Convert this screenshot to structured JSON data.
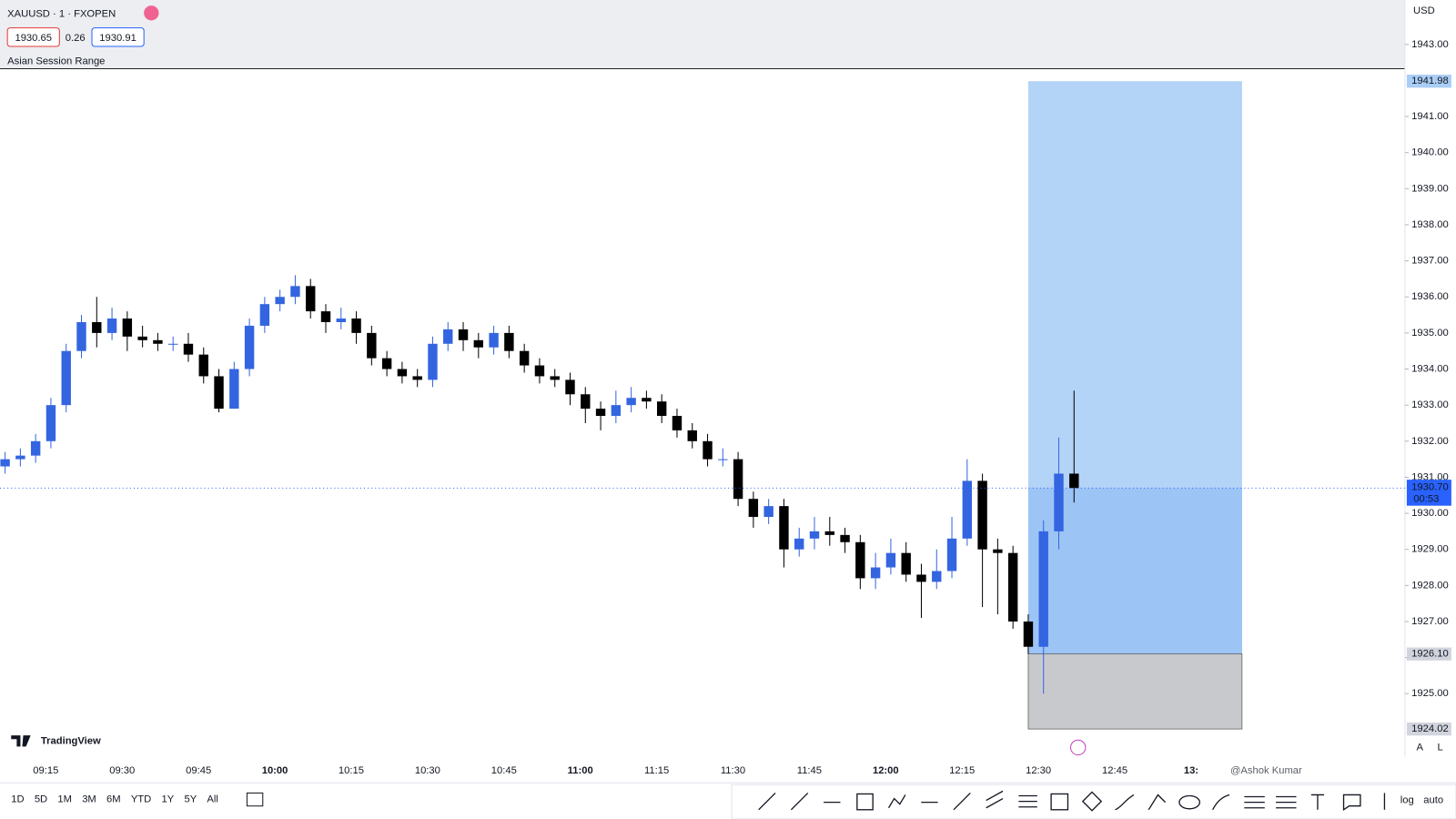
{
  "header": {
    "symbol": "XAUUSD · 1 · FXOPEN",
    "bid": "1930.65",
    "spread": "0.26",
    "ask": "1930.91",
    "indicator": "Asian Session Range"
  },
  "currency": "USD",
  "chart_data": {
    "type": "candlestick",
    "x": [
      "09:07",
      "09:10",
      "09:13",
      "09:16",
      "09:19",
      "09:22",
      "09:25",
      "09:28",
      "09:31",
      "09:34",
      "09:37",
      "09:40",
      "09:43",
      "09:46",
      "09:49",
      "09:52",
      "09:55",
      "09:58",
      "10:01",
      "10:04",
      "10:07",
      "10:10",
      "10:13",
      "10:16",
      "10:19",
      "10:22",
      "10:25",
      "10:28",
      "10:31",
      "10:34",
      "10:37",
      "10:40",
      "10:43",
      "10:46",
      "10:49",
      "10:52",
      "10:55",
      "10:58",
      "11:01",
      "11:04",
      "11:07",
      "11:10",
      "11:13",
      "11:16",
      "11:19",
      "11:22",
      "11:25",
      "11:28",
      "11:31",
      "11:34",
      "11:37",
      "11:40",
      "11:43",
      "11:46",
      "11:49",
      "11:52",
      "11:55",
      "11:58",
      "12:01",
      "12:04",
      "12:07",
      "12:10",
      "12:13",
      "12:16",
      "12:19",
      "12:22",
      "12:25",
      "12:28",
      "12:31",
      "12:34",
      "12:37"
    ],
    "open": [
      1931.3,
      1931.5,
      1931.6,
      1932.0,
      1933.0,
      1934.5,
      1935.3,
      1935.0,
      1935.4,
      1934.9,
      1934.8,
      1934.7,
      1934.7,
      1934.4,
      1933.8,
      1932.9,
      1934.0,
      1935.2,
      1935.8,
      1936.0,
      1936.3,
      1935.6,
      1935.3,
      1935.4,
      1935.0,
      1934.3,
      1934.0,
      1933.8,
      1933.7,
      1934.7,
      1935.1,
      1934.8,
      1934.6,
      1935.0,
      1934.5,
      1934.1,
      1933.8,
      1933.7,
      1933.3,
      1932.9,
      1932.7,
      1933.0,
      1933.2,
      1933.1,
      1932.7,
      1932.3,
      1932.0,
      1931.5,
      1931.5,
      1930.4,
      1929.9,
      1930.2,
      1929.0,
      1929.3,
      1929.5,
      1929.4,
      1929.2,
      1928.2,
      1928.5,
      1928.9,
      1928.3,
      1928.1,
      1928.4,
      1929.3,
      1930.9,
      1929.0,
      1928.9,
      1927.0,
      1926.3,
      1929.5,
      1931.1
    ],
    "high": [
      1931.7,
      1931.8,
      1932.2,
      1933.2,
      1934.7,
      1935.5,
      1936.0,
      1935.7,
      1935.6,
      1935.2,
      1935.0,
      1934.9,
      1935.0,
      1934.6,
      1934.0,
      1934.2,
      1935.4,
      1936.0,
      1936.2,
      1936.6,
      1936.5,
      1935.8,
      1935.7,
      1935.6,
      1935.2,
      1934.5,
      1934.2,
      1934.0,
      1934.9,
      1935.3,
      1935.3,
      1935.0,
      1935.2,
      1935.2,
      1934.7,
      1934.3,
      1934.0,
      1933.9,
      1933.5,
      1933.1,
      1933.4,
      1933.5,
      1933.4,
      1933.3,
      1932.9,
      1932.5,
      1932.2,
      1931.8,
      1931.7,
      1930.6,
      1930.4,
      1930.4,
      1929.6,
      1929.9,
      1929.9,
      1929.6,
      1929.4,
      1928.9,
      1929.3,
      1929.2,
      1928.6,
      1929.0,
      1929.9,
      1931.5,
      1931.1,
      1929.3,
      1929.1,
      1927.2,
      1929.8,
      1932.1,
      1933.4
    ],
    "low": [
      1931.1,
      1931.3,
      1931.4,
      1931.8,
      1932.8,
      1934.3,
      1934.6,
      1934.8,
      1934.5,
      1934.6,
      1934.5,
      1934.5,
      1934.2,
      1933.6,
      1932.8,
      1932.9,
      1933.8,
      1935.0,
      1935.6,
      1935.8,
      1935.4,
      1935.0,
      1935.1,
      1934.7,
      1934.1,
      1933.8,
      1933.6,
      1933.5,
      1933.5,
      1934.5,
      1934.5,
      1934.3,
      1934.4,
      1934.3,
      1933.9,
      1933.6,
      1933.5,
      1933.0,
      1932.5,
      1932.3,
      1932.5,
      1932.8,
      1932.9,
      1932.5,
      1932.1,
      1931.8,
      1931.3,
      1931.3,
      1930.2,
      1929.6,
      1929.7,
      1928.5,
      1928.8,
      1929.0,
      1929.1,
      1928.9,
      1927.9,
      1927.9,
      1928.3,
      1928.1,
      1927.1,
      1927.9,
      1928.2,
      1929.1,
      1927.4,
      1927.2,
      1926.8,
      1926.1,
      1925.0,
      1929.0,
      1930.3
    ],
    "close": [
      1931.5,
      1931.6,
      1932.0,
      1933.0,
      1934.5,
      1935.3,
      1935.0,
      1935.4,
      1934.9,
      1934.8,
      1934.7,
      1934.7,
      1934.4,
      1933.8,
      1932.9,
      1934.0,
      1935.2,
      1935.8,
      1936.0,
      1936.3,
      1935.6,
      1935.3,
      1935.4,
      1935.0,
      1934.3,
      1934.0,
      1933.8,
      1933.7,
      1934.7,
      1935.1,
      1934.8,
      1934.6,
      1935.0,
      1934.5,
      1934.1,
      1933.8,
      1933.7,
      1933.3,
      1932.9,
      1932.7,
      1933.0,
      1933.2,
      1933.1,
      1932.7,
      1932.3,
      1932.0,
      1931.5,
      1931.5,
      1930.4,
      1929.9,
      1930.2,
      1929.0,
      1929.3,
      1929.5,
      1929.4,
      1929.2,
      1928.2,
      1928.5,
      1928.9,
      1928.3,
      1928.1,
      1928.4,
      1929.3,
      1930.9,
      1929.0,
      1928.9,
      1927.0,
      1926.3,
      1929.5,
      1931.1,
      1930.7
    ],
    "up_color": "#3465e0",
    "down_color": "#000000",
    "xlim": [
      "09:06",
      "13:42"
    ],
    "xticks": [
      "09:15",
      "09:30",
      "09:45",
      "10:00",
      "10:15",
      "10:30",
      "10:45",
      "11:00",
      "11:15",
      "11:30",
      "11:45",
      "12:00",
      "12:15",
      "12:30",
      "12:45",
      {
        "value": "13:00",
        "label": "13:"
      }
    ],
    "ylim": [
      1923.25,
      1942.3
    ],
    "yticks": [
      {
        "value": 1925,
        "label": "1925.00"
      },
      {
        "value": 1926,
        "label": "1926.00"
      },
      {
        "value": 1927,
        "label": "1927.00"
      },
      {
        "value": 1928,
        "label": "1928.00"
      },
      {
        "value": 1929,
        "label": "1929.00"
      },
      {
        "value": 1930,
        "label": "1930.00"
      },
      {
        "value": 1931,
        "label": "1931.00"
      },
      {
        "value": 1932,
        "label": "1932.00"
      },
      {
        "value": 1933,
        "label": "1933.00"
      },
      {
        "value": 1934,
        "label": "1934.00"
      },
      {
        "value": 1935,
        "label": "1935.00"
      },
      {
        "value": 1936,
        "label": "1936.00"
      },
      {
        "value": 1937,
        "label": "1937.00"
      },
      {
        "value": 1938,
        "label": "1938.00"
      },
      {
        "value": 1939,
        "label": "1939.00"
      },
      {
        "value": 1940,
        "label": "1940.00"
      },
      {
        "value": 1941,
        "label": "1941.00"
      },
      {
        "value": 1943,
        "label": "1943.00"
      }
    ],
    "last_price": {
      "value": 1930.7,
      "label": "1930.70",
      "countdown": "00:53"
    },
    "position": {
      "start": "12:28",
      "end": "13:10",
      "target": {
        "value": 1941.98,
        "label": "1941.98"
      },
      "entry": {
        "value": 1926.1,
        "label": "1926.10"
      },
      "stop": {
        "value": 1924.02,
        "label": "1924.02"
      }
    }
  },
  "logo": "TradingView",
  "watermark": "@Ashok Kumar",
  "ranges": [
    "1D",
    "5D",
    "1M",
    "3M",
    "6M",
    "YTD",
    "1Y",
    "5Y",
    "All"
  ],
  "scale_buttons": [
    "A",
    "L"
  ],
  "scale_options": [
    "log",
    "auto"
  ]
}
